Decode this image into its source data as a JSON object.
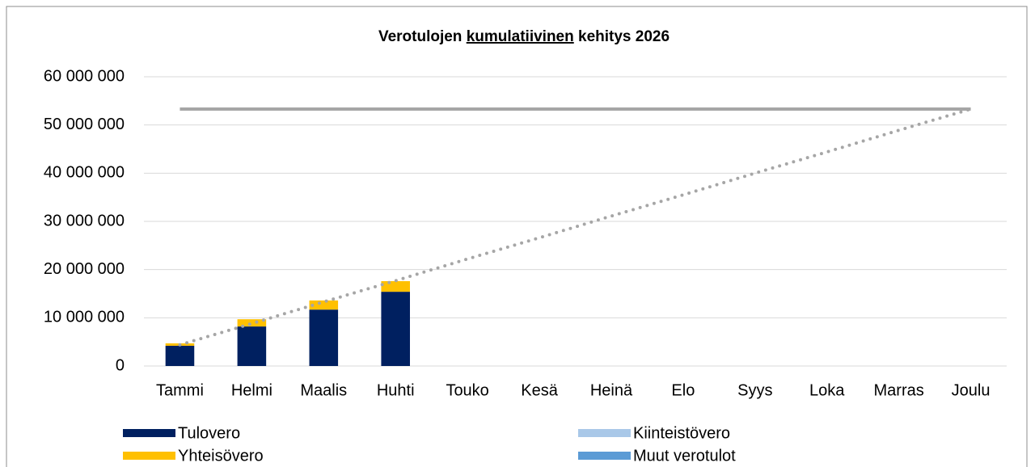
{
  "chart_data": {
    "type": "bar",
    "title": [
      "Verotulojen",
      "kumulatiivinen",
      "kehitys 2026"
    ],
    "categories": [
      "Tammi",
      "Helmi",
      "Maalis",
      "Huhti",
      "Touko",
      "Kesä",
      "Heinä",
      "Elo",
      "Syys",
      "Loka",
      "Marras",
      "Joulu"
    ],
    "stacked": true,
    "series": [
      {
        "name": "Tulovero",
        "color": "#002060",
        "values": [
          4200000,
          8200000,
          11700000,
          15400000,
          null,
          null,
          null,
          null,
          null,
          null,
          null,
          null
        ]
      },
      {
        "name": "Yhteisövero",
        "color": "#ffc000",
        "values": [
          500000,
          1500000,
          1900000,
          2200000,
          null,
          null,
          null,
          null,
          null,
          null,
          null,
          null
        ]
      },
      {
        "name": "Kiinteistövero",
        "color": "#a9c8e8",
        "values": [
          0,
          0,
          0,
          0,
          null,
          null,
          null,
          null,
          null,
          null,
          null,
          null
        ]
      },
      {
        "name": "Muut verotulot",
        "color": "#5b9bd5",
        "values": [
          0,
          0,
          0,
          0,
          null,
          null,
          null,
          null,
          null,
          null,
          null,
          null
        ]
      }
    ],
    "lines": [
      {
        "color": "#a6a6a6",
        "style": "solid",
        "values": [
          53300000,
          53300000,
          53300000,
          53300000,
          53300000,
          53300000,
          53300000,
          53300000,
          53300000,
          53300000,
          53300000,
          53300000
        ]
      },
      {
        "color": "#a6a6a6",
        "style": "dotted",
        "values": [
          4400000,
          8800000,
          13300000,
          17700000,
          22200000,
          26600000,
          31100000,
          35500000,
          40000000,
          44400000,
          48900000,
          53300000
        ]
      }
    ],
    "ylim": [
      0,
      60000000
    ],
    "yticks": [
      0,
      {
        "value": 10000000,
        "label": "10 000 000"
      },
      {
        "value": 20000000,
        "label": "20 000 000"
      },
      {
        "value": 30000000,
        "label": "30 000 000"
      },
      {
        "value": 40000000,
        "label": "40 000 000"
      },
      {
        "value": 50000000,
        "label": "50 000 000"
      },
      {
        "value": 60000000,
        "label": "60 000 000"
      }
    ],
    "grid": true,
    "legend": "bottom"
  }
}
